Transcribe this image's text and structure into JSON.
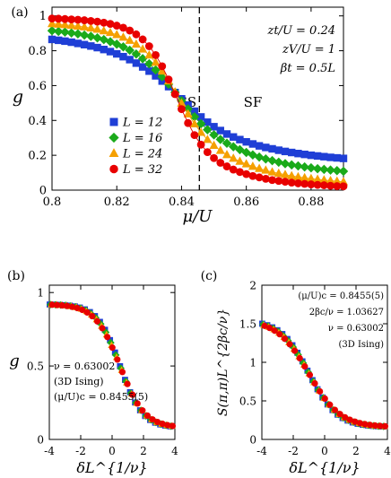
{
  "chart_data": [
    {
      "type": "scatter",
      "panel_label": "(a)",
      "xlabel": "μ/U",
      "ylabel": "g",
      "xlim": [
        0.8,
        0.89
      ],
      "ylim": [
        0,
        1.05
      ],
      "xticks": [
        0.8,
        0.82,
        0.84,
        0.86,
        0.88
      ],
      "xtick_labels": [
        "0.8",
        "0.82",
        "0.84",
        "0.86",
        "0.88"
      ],
      "yticks": [
        0,
        0.2,
        0.4,
        0.6,
        0.8,
        1
      ],
      "ytick_labels": [
        "0",
        "0.2",
        "0.4",
        "0.6",
        "0.8",
        "1"
      ],
      "vline_x": 0.8455,
      "annotations": [
        "zt/U = 0.24",
        "zV/U = 1",
        "βt = 0.5L"
      ],
      "region_labels": [
        "SS",
        "SF"
      ],
      "legend_position": "lower-left",
      "series": [
        {
          "name": "L = 12",
          "marker": "square",
          "color": "#1f3fd6",
          "x": [
            0.8,
            0.802,
            0.804,
            0.806,
            0.808,
            0.81,
            0.812,
            0.814,
            0.816,
            0.818,
            0.82,
            0.822,
            0.824,
            0.826,
            0.828,
            0.83,
            0.832,
            0.834,
            0.836,
            0.838,
            0.84,
            0.842,
            0.844,
            0.846,
            0.848,
            0.85,
            0.852,
            0.854,
            0.856,
            0.858,
            0.86,
            0.862,
            0.864,
            0.866,
            0.868,
            0.87,
            0.872,
            0.874,
            0.876,
            0.878,
            0.88,
            0.882,
            0.884,
            0.886,
            0.888,
            0.89
          ],
          "y": [
            0.865,
            0.86,
            0.855,
            0.849,
            0.842,
            0.835,
            0.827,
            0.818,
            0.807,
            0.795,
            0.782,
            0.766,
            0.749,
            0.729,
            0.707,
            0.683,
            0.656,
            0.626,
            0.594,
            0.56,
            0.524,
            0.488,
            0.453,
            0.42,
            0.39,
            0.364,
            0.342,
            0.322,
            0.305,
            0.29,
            0.277,
            0.265,
            0.254,
            0.245,
            0.237,
            0.229,
            0.222,
            0.216,
            0.21,
            0.205,
            0.2,
            0.196,
            0.192,
            0.188,
            0.185,
            0.182
          ]
        },
        {
          "name": "L = 16",
          "marker": "diamond",
          "color": "#1aaa1a",
          "x": [
            0.8,
            0.802,
            0.804,
            0.806,
            0.808,
            0.81,
            0.812,
            0.814,
            0.816,
            0.818,
            0.82,
            0.822,
            0.824,
            0.826,
            0.828,
            0.83,
            0.832,
            0.834,
            0.836,
            0.838,
            0.84,
            0.842,
            0.844,
            0.846,
            0.848,
            0.85,
            0.852,
            0.854,
            0.856,
            0.858,
            0.86,
            0.862,
            0.864,
            0.866,
            0.868,
            0.87,
            0.872,
            0.874,
            0.876,
            0.878,
            0.88,
            0.882,
            0.884,
            0.886,
            0.888,
            0.89
          ],
          "y": [
            0.915,
            0.911,
            0.907,
            0.902,
            0.897,
            0.89,
            0.883,
            0.874,
            0.864,
            0.852,
            0.838,
            0.822,
            0.803,
            0.781,
            0.755,
            0.725,
            0.69,
            0.651,
            0.608,
            0.561,
            0.513,
            0.466,
            0.421,
            0.381,
            0.347,
            0.317,
            0.291,
            0.269,
            0.249,
            0.232,
            0.216,
            0.202,
            0.19,
            0.179,
            0.169,
            0.16,
            0.152,
            0.145,
            0.139,
            0.133,
            0.128,
            0.123,
            0.119,
            0.115,
            0.112,
            0.108
          ]
        },
        {
          "name": "L = 24",
          "marker": "triangle",
          "color": "#f5a000",
          "x": [
            0.8,
            0.802,
            0.804,
            0.806,
            0.808,
            0.81,
            0.812,
            0.814,
            0.816,
            0.818,
            0.82,
            0.822,
            0.824,
            0.826,
            0.828,
            0.83,
            0.832,
            0.834,
            0.836,
            0.838,
            0.84,
            0.842,
            0.844,
            0.846,
            0.848,
            0.85,
            0.852,
            0.854,
            0.856,
            0.858,
            0.86,
            0.862,
            0.864,
            0.866,
            0.868,
            0.87,
            0.872,
            0.874,
            0.876,
            0.878,
            0.88,
            0.882,
            0.884,
            0.886,
            0.888,
            0.89
          ],
          "y": [
            0.955,
            0.952,
            0.949,
            0.945,
            0.941,
            0.936,
            0.93,
            0.923,
            0.914,
            0.904,
            0.892,
            0.877,
            0.859,
            0.837,
            0.809,
            0.775,
            0.733,
            0.683,
            0.626,
            0.563,
            0.499,
            0.437,
            0.38,
            0.331,
            0.29,
            0.256,
            0.227,
            0.203,
            0.182,
            0.165,
            0.15,
            0.136,
            0.124,
            0.114,
            0.104,
            0.096,
            0.089,
            0.082,
            0.076,
            0.071,
            0.066,
            0.062,
            0.058,
            0.054,
            0.051,
            0.048
          ]
        },
        {
          "name": "L = 32",
          "marker": "circle",
          "color": "#e80000",
          "x": [
            0.8,
            0.802,
            0.804,
            0.806,
            0.808,
            0.81,
            0.812,
            0.814,
            0.816,
            0.818,
            0.82,
            0.822,
            0.824,
            0.826,
            0.828,
            0.83,
            0.832,
            0.834,
            0.836,
            0.838,
            0.84,
            0.842,
            0.844,
            0.846,
            0.848,
            0.85,
            0.852,
            0.854,
            0.856,
            0.858,
            0.86,
            0.862,
            0.864,
            0.866,
            0.868,
            0.87,
            0.872,
            0.874,
            0.876,
            0.878,
            0.88,
            0.882,
            0.884,
            0.886,
            0.888,
            0.89
          ],
          "y": [
            0.985,
            0.984,
            0.982,
            0.98,
            0.978,
            0.975,
            0.971,
            0.967,
            0.961,
            0.954,
            0.944,
            0.932,
            0.916,
            0.894,
            0.865,
            0.826,
            0.775,
            0.711,
            0.635,
            0.551,
            0.465,
            0.385,
            0.316,
            0.261,
            0.218,
            0.184,
            0.157,
            0.136,
            0.118,
            0.104,
            0.092,
            0.081,
            0.073,
            0.065,
            0.058,
            0.053,
            0.048,
            0.043,
            0.039,
            0.036,
            0.033,
            0.03,
            0.028,
            0.025,
            0.023,
            0.022
          ]
        }
      ]
    },
    {
      "type": "scatter",
      "panel_label": "(b)",
      "xlabel": "δL^{1/ν}",
      "ylabel": "g",
      "xlim": [
        -4,
        4
      ],
      "ylim": [
        0,
        1.05
      ],
      "xticks": [
        -4,
        -2,
        0,
        2,
        4
      ],
      "xtick_labels": [
        "-4",
        "-2",
        "0",
        "2",
        "4"
      ],
      "yticks": [
        0,
        0.5,
        1
      ],
      "ytick_labels": [
        "0",
        "0.5",
        "1"
      ],
      "annotations": [
        "ν = 0.63002",
        "(3D Ising)",
        "(μ/U)c = 0.8455(5)"
      ],
      "collapse": {
        "left": 0.92,
        "right": 0.08,
        "center": 0.5,
        "width": 0.75
      }
    },
    {
      "type": "scatter",
      "panel_label": "(c)",
      "xlabel": "δL^{1/ν}",
      "ylabel": "S(π,π)L^{2βc/ν}",
      "xlim": [
        -4,
        4
      ],
      "ylim": [
        0,
        2
      ],
      "xticks": [
        -4,
        -2,
        0,
        2,
        4
      ],
      "xtick_labels": [
        "-4",
        "-2",
        "0",
        "2",
        "4"
      ],
      "yticks": [
        0,
        0.5,
        1,
        1.5,
        2
      ],
      "ytick_labels": [
        "0",
        "0.5",
        "1",
        "1.5",
        "2"
      ],
      "annotations": [
        "(μ/U)c = 0.8455(5)",
        "2βc/ν = 1.03627",
        "ν = 0.63002",
        "(3D Ising)"
      ],
      "collapse": {
        "left": 1.55,
        "right": 0.16,
        "center": -1.0,
        "width": 0.95
      }
    }
  ]
}
